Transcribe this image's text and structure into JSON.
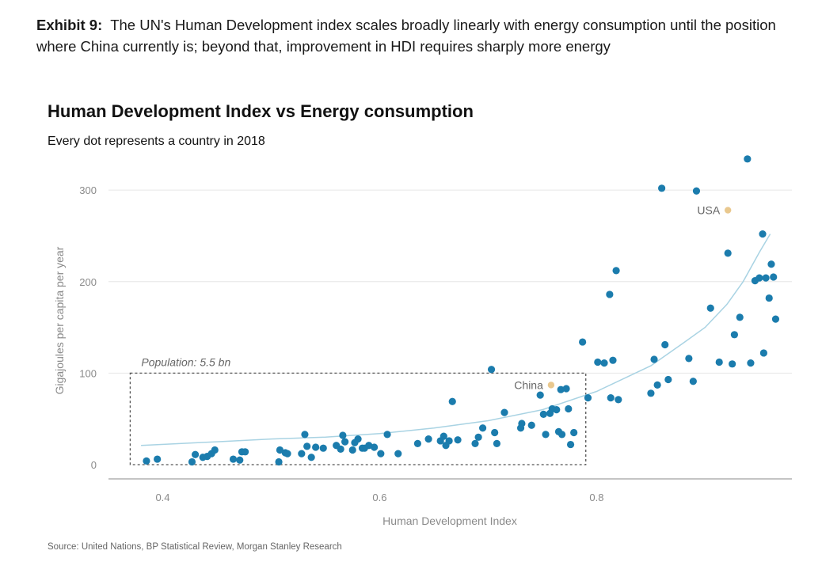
{
  "exhibit": {
    "label": "Exhibit 9:",
    "text": "The UN's Human Development index scales broadly linearly with energy consumption until the position where China currently is; beyond that, improvement in HDI requires sharply more energy"
  },
  "source": "Source: United Nations, BP Statistical Review, Morgan Stanley Research",
  "colors": {
    "dot": "#1b7cad",
    "highlight": "#e9c88e",
    "trend": "#a9d3e3",
    "grid": "#e6e6e6",
    "box": "#555555"
  },
  "chart_data": {
    "type": "scatter",
    "title": "Human Development Index vs Energy consumption",
    "subtitle": "Every dot represents a country in 2018",
    "xlabel": "Human Development Index",
    "ylabel": "Gigajoules per capita per year",
    "xlim": [
      0.35,
      0.98
    ],
    "ylim": [
      0,
      320
    ],
    "x_ticks": [
      0.4,
      0.6,
      0.8
    ],
    "x_tick_labels": [
      "0.4",
      "0.6",
      "0.8"
    ],
    "y_ticks": [
      0,
      100,
      200,
      300
    ],
    "y_tick_labels": [
      "0",
      "100",
      "200",
      "300"
    ],
    "grid": "horizontal",
    "points": [
      [
        0.385,
        4
      ],
      [
        0.395,
        6
      ],
      [
        0.427,
        3
      ],
      [
        0.43,
        11
      ],
      [
        0.437,
        8
      ],
      [
        0.441,
        9
      ],
      [
        0.445,
        12
      ],
      [
        0.448,
        16
      ],
      [
        0.465,
        6
      ],
      [
        0.471,
        5
      ],
      [
        0.473,
        14
      ],
      [
        0.476,
        14
      ],
      [
        0.507,
        3
      ],
      [
        0.508,
        16
      ],
      [
        0.513,
        13
      ],
      [
        0.515,
        12
      ],
      [
        0.528,
        12
      ],
      [
        0.531,
        33
      ],
      [
        0.533,
        20
      ],
      [
        0.537,
        8
      ],
      [
        0.541,
        19
      ],
      [
        0.548,
        18
      ],
      [
        0.56,
        21
      ],
      [
        0.564,
        17
      ],
      [
        0.566,
        32
      ],
      [
        0.568,
        25
      ],
      [
        0.575,
        16
      ],
      [
        0.577,
        24
      ],
      [
        0.58,
        28
      ],
      [
        0.584,
        18
      ],
      [
        0.586,
        18
      ],
      [
        0.59,
        21
      ],
      [
        0.595,
        19
      ],
      [
        0.601,
        12
      ],
      [
        0.607,
        33
      ],
      [
        0.617,
        12
      ],
      [
        0.635,
        23
      ],
      [
        0.645,
        28
      ],
      [
        0.656,
        26
      ],
      [
        0.659,
        31
      ],
      [
        0.661,
        21
      ],
      [
        0.664,
        26
      ],
      [
        0.667,
        69
      ],
      [
        0.672,
        27
      ],
      [
        0.688,
        23
      ],
      [
        0.691,
        30
      ],
      [
        0.695,
        40
      ],
      [
        0.703,
        104
      ],
      [
        0.706,
        35
      ],
      [
        0.708,
        23
      ],
      [
        0.715,
        57
      ],
      [
        0.73,
        40
      ],
      [
        0.731,
        45
      ],
      [
        0.74,
        43
      ],
      [
        0.748,
        76
      ],
      [
        0.751,
        55
      ],
      [
        0.753,
        33
      ],
      [
        0.757,
        56
      ],
      [
        0.759,
        61
      ],
      [
        0.763,
        60
      ],
      [
        0.765,
        36
      ],
      [
        0.767,
        82
      ],
      [
        0.768,
        33
      ],
      [
        0.772,
        83
      ],
      [
        0.774,
        61
      ],
      [
        0.776,
        22
      ],
      [
        0.779,
        35
      ],
      [
        0.787,
        134
      ],
      [
        0.792,
        73
      ],
      [
        0.801,
        112
      ],
      [
        0.807,
        111
      ],
      [
        0.812,
        186
      ],
      [
        0.813,
        73
      ],
      [
        0.815,
        114
      ],
      [
        0.818,
        212
      ],
      [
        0.82,
        71
      ],
      [
        0.85,
        78
      ],
      [
        0.853,
        115
      ],
      [
        0.856,
        87
      ],
      [
        0.86,
        302
      ],
      [
        0.863,
        131
      ],
      [
        0.866,
        93
      ],
      [
        0.885,
        116
      ],
      [
        0.889,
        91
      ],
      [
        0.892,
        299
      ],
      [
        0.905,
        171
      ],
      [
        0.913,
        112
      ],
      [
        0.921,
        231
      ],
      [
        0.925,
        110
      ],
      [
        0.927,
        142
      ],
      [
        0.932,
        161
      ],
      [
        0.939,
        334
      ],
      [
        0.942,
        111
      ],
      [
        0.946,
        201
      ],
      [
        0.95,
        204
      ],
      [
        0.953,
        252
      ],
      [
        0.954,
        122
      ],
      [
        0.956,
        204
      ],
      [
        0.959,
        182
      ],
      [
        0.961,
        219
      ],
      [
        0.963,
        205
      ],
      [
        0.965,
        159
      ]
    ],
    "highlighted_points": [
      {
        "label": "China",
        "x": 0.758,
        "y": 87
      },
      {
        "label": "USA",
        "x": 0.921,
        "y": 278
      }
    ],
    "trend_line": [
      [
        0.38,
        21
      ],
      [
        0.45,
        25
      ],
      [
        0.5,
        28
      ],
      [
        0.55,
        30
      ],
      [
        0.6,
        34
      ],
      [
        0.65,
        40
      ],
      [
        0.7,
        48
      ],
      [
        0.75,
        60
      ],
      [
        0.8,
        80
      ],
      [
        0.85,
        108
      ],
      [
        0.88,
        133
      ],
      [
        0.9,
        150
      ],
      [
        0.92,
        175
      ],
      [
        0.935,
        200
      ],
      [
        0.95,
        232
      ],
      [
        0.96,
        252
      ]
    ],
    "annotation": {
      "text": "Population: 5.5 bn",
      "box_x": [
        0.37,
        0.79
      ],
      "box_y": [
        0,
        100
      ]
    }
  }
}
